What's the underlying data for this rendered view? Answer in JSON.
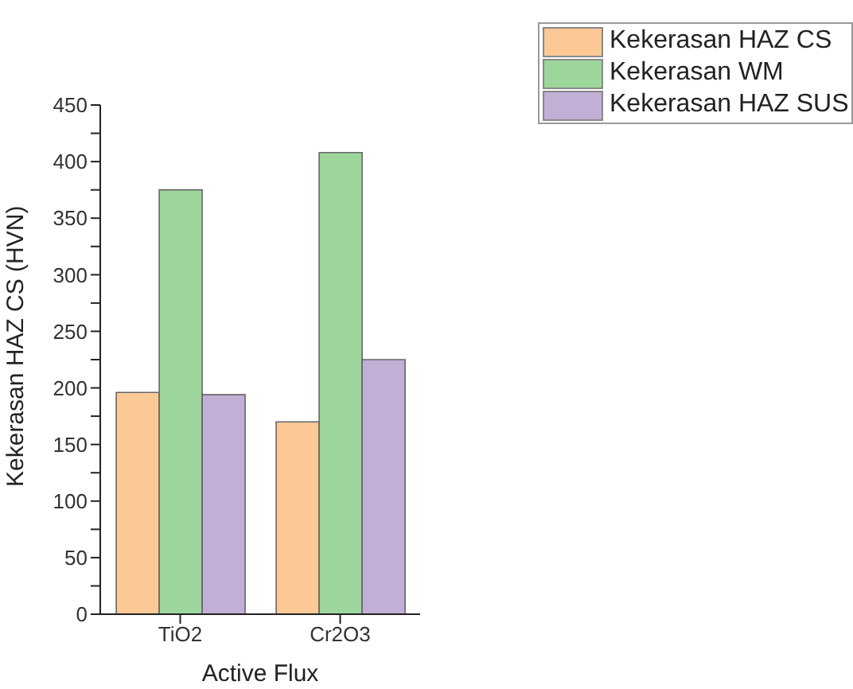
{
  "chart_data": {
    "type": "bar",
    "xlabel": "Active Flux",
    "ylabel": "Kekerasan HAZ CS (HVN)",
    "categories": [
      "TiO2",
      "Cr2O3"
    ],
    "series": [
      {
        "name": "Kekerasan HAZ CS",
        "color": "#fcc896",
        "values": [
          196,
          170
        ]
      },
      {
        "name": "Kekerasan WM",
        "color": "#9dd69b",
        "values": [
          375,
          408
        ]
      },
      {
        "name": "Kekerasan HAZ SUS",
        "color": "#c1afd6",
        "values": [
          194,
          225
        ]
      }
    ],
    "ylim": [
      0,
      450
    ],
    "yticks": [
      0,
      {
        "value": 25,
        "label": null
      },
      50,
      {
        "value": 75,
        "label": null
      },
      100,
      {
        "value": 125,
        "label": null
      },
      150,
      {
        "value": 175,
        "label": null
      },
      200,
      {
        "value": 225,
        "label": null
      },
      250,
      {
        "value": 275,
        "label": null
      },
      300,
      {
        "value": 325,
        "label": null
      },
      350,
      {
        "value": 375,
        "label": null
      },
      400,
      {
        "value": 425,
        "label": null
      },
      450
    ],
    "grid": false,
    "legend": "top right"
  }
}
